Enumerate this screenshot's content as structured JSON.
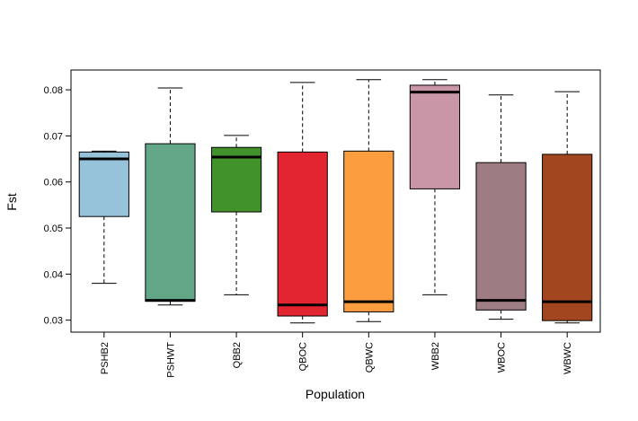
{
  "chart_data": {
    "type": "boxplot",
    "title": "",
    "xlabel": "Population",
    "ylabel": "Fst",
    "ylim": [
      0.0274,
      0.0843
    ],
    "yticks": [
      0.03,
      0.04,
      0.05,
      0.06,
      0.07,
      0.08
    ],
    "ytick_labels": [
      "0.03",
      "0.04",
      "0.05",
      "0.06",
      "0.07",
      "0.08"
    ],
    "grid": false,
    "legend": "none",
    "categories": [
      "PSHB2",
      "PSHWT",
      "QBB2",
      "QBOC",
      "QBWC",
      "WBB2",
      "WBOC",
      "WBWC"
    ],
    "boxes": [
      {
        "name": "PSHB2",
        "min": 0.038,
        "q1": 0.0525,
        "median": 0.065,
        "q3": 0.0665,
        "max": 0.0667,
        "color": "#97c3da"
      },
      {
        "name": "PSHWT",
        "min": 0.0333,
        "q1": 0.0341,
        "median": 0.0343,
        "q3": 0.0683,
        "max": 0.0804,
        "color": "#64a788"
      },
      {
        "name": "QBB2",
        "min": 0.0355,
        "q1": 0.0535,
        "median": 0.0654,
        "q3": 0.0675,
        "max": 0.0701,
        "color": "#42922c"
      },
      {
        "name": "QBOC",
        "min": 0.0294,
        "q1": 0.0309,
        "median": 0.0333,
        "q3": 0.0665,
        "max": 0.0816,
        "color": "#e32431"
      },
      {
        "name": "QBWC",
        "min": 0.0297,
        "q1": 0.0318,
        "median": 0.034,
        "q3": 0.0667,
        "max": 0.0822,
        "color": "#fc9e40"
      },
      {
        "name": "WBB2",
        "min": 0.0355,
        "q1": 0.0585,
        "median": 0.0795,
        "q3": 0.081,
        "max": 0.0822,
        "color": "#c896a6"
      },
      {
        "name": "WBOC",
        "min": 0.0302,
        "q1": 0.0322,
        "median": 0.0343,
        "q3": 0.0642,
        "max": 0.0789,
        "color": "#9e7c84"
      },
      {
        "name": "WBWC",
        "min": 0.0294,
        "q1": 0.0299,
        "median": 0.034,
        "q3": 0.066,
        "max": 0.0796,
        "color": "#a24620"
      }
    ]
  }
}
